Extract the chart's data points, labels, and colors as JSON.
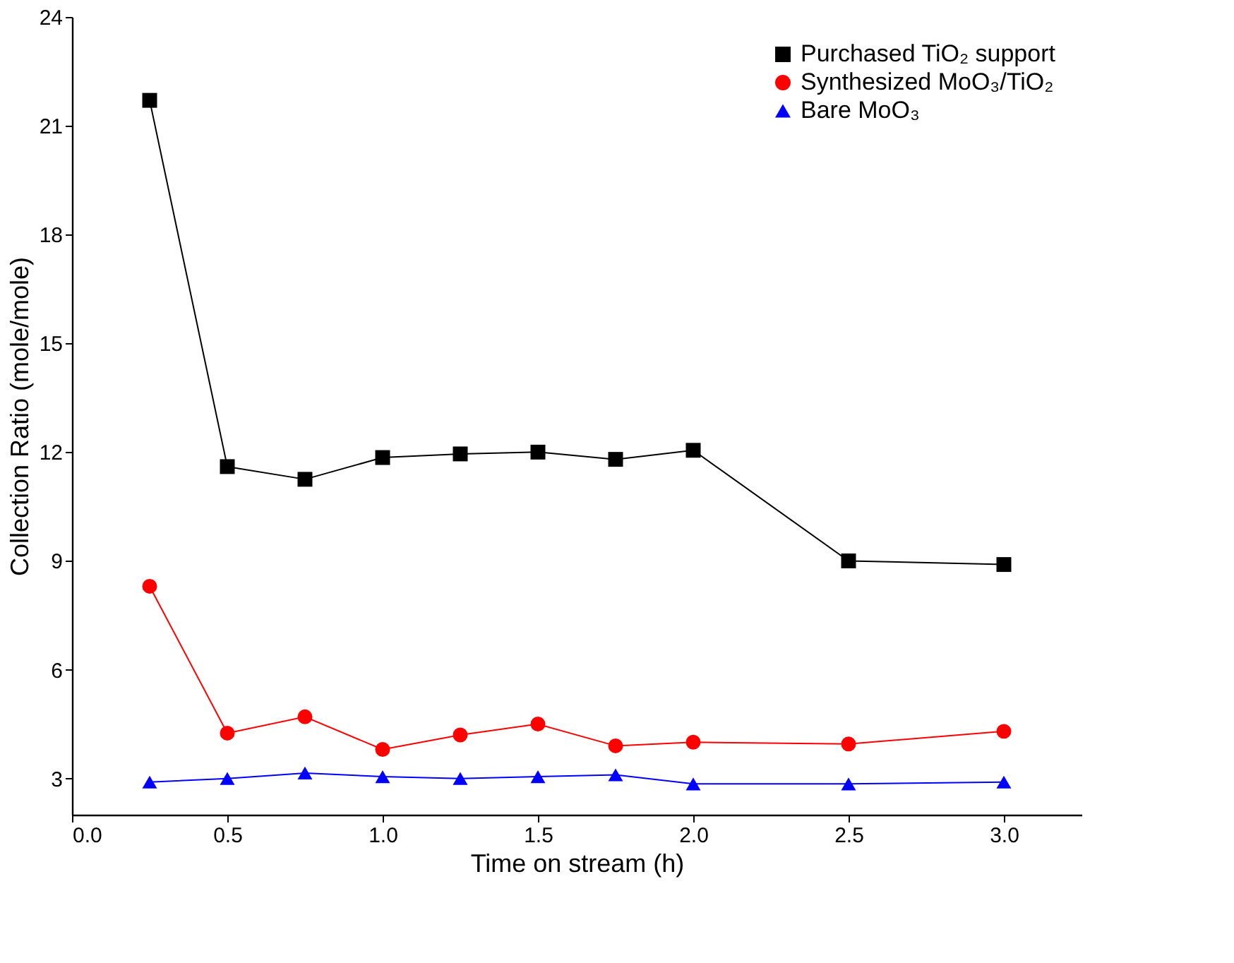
{
  "chart_data": {
    "type": "line",
    "xlabel": "Time on stream (h)",
    "ylabel": "Collection Ratio (mole/mole)",
    "x": [
      0.25,
      0.5,
      0.75,
      1.0,
      1.25,
      1.5,
      1.75,
      2.0,
      2.5,
      3.0
    ],
    "xlim": [
      0,
      3.25
    ],
    "xticks": [
      {
        "value": 0,
        "label": "0.0"
      },
      0.5,
      {
        "value": 1,
        "label": "1.0"
      },
      1.5,
      {
        "value": 2,
        "label": "2.0"
      },
      2.5,
      {
        "value": 3,
        "label": "3.0"
      }
    ],
    "ylim": [
      2,
      24
    ],
    "yticks": [
      3,
      6,
      9,
      12,
      15,
      18,
      21,
      24
    ],
    "grid": false,
    "legend": "top right",
    "line_style": "solid",
    "series": [
      {
        "name": "Purchased TiO₂ support",
        "color": "#000000",
        "marker": "square",
        "values": [
          21.7,
          11.6,
          11.25,
          11.85,
          11.95,
          12.0,
          11.8,
          12.05,
          9.0,
          8.9
        ]
      },
      {
        "name": "Synthesized MoO₃/TiO₂",
        "color": "#ff0000",
        "marker": "circle",
        "values": [
          8.3,
          4.25,
          4.7,
          3.8,
          4.2,
          4.5,
          3.9,
          4.0,
          3.95,
          4.3
        ]
      },
      {
        "name": "Bare MoO₃",
        "color": "#0000ff",
        "marker": "triangle",
        "values": [
          2.9,
          3.0,
          3.15,
          3.05,
          3.0,
          3.05,
          3.1,
          2.85,
          2.85,
          2.9
        ]
      }
    ]
  }
}
